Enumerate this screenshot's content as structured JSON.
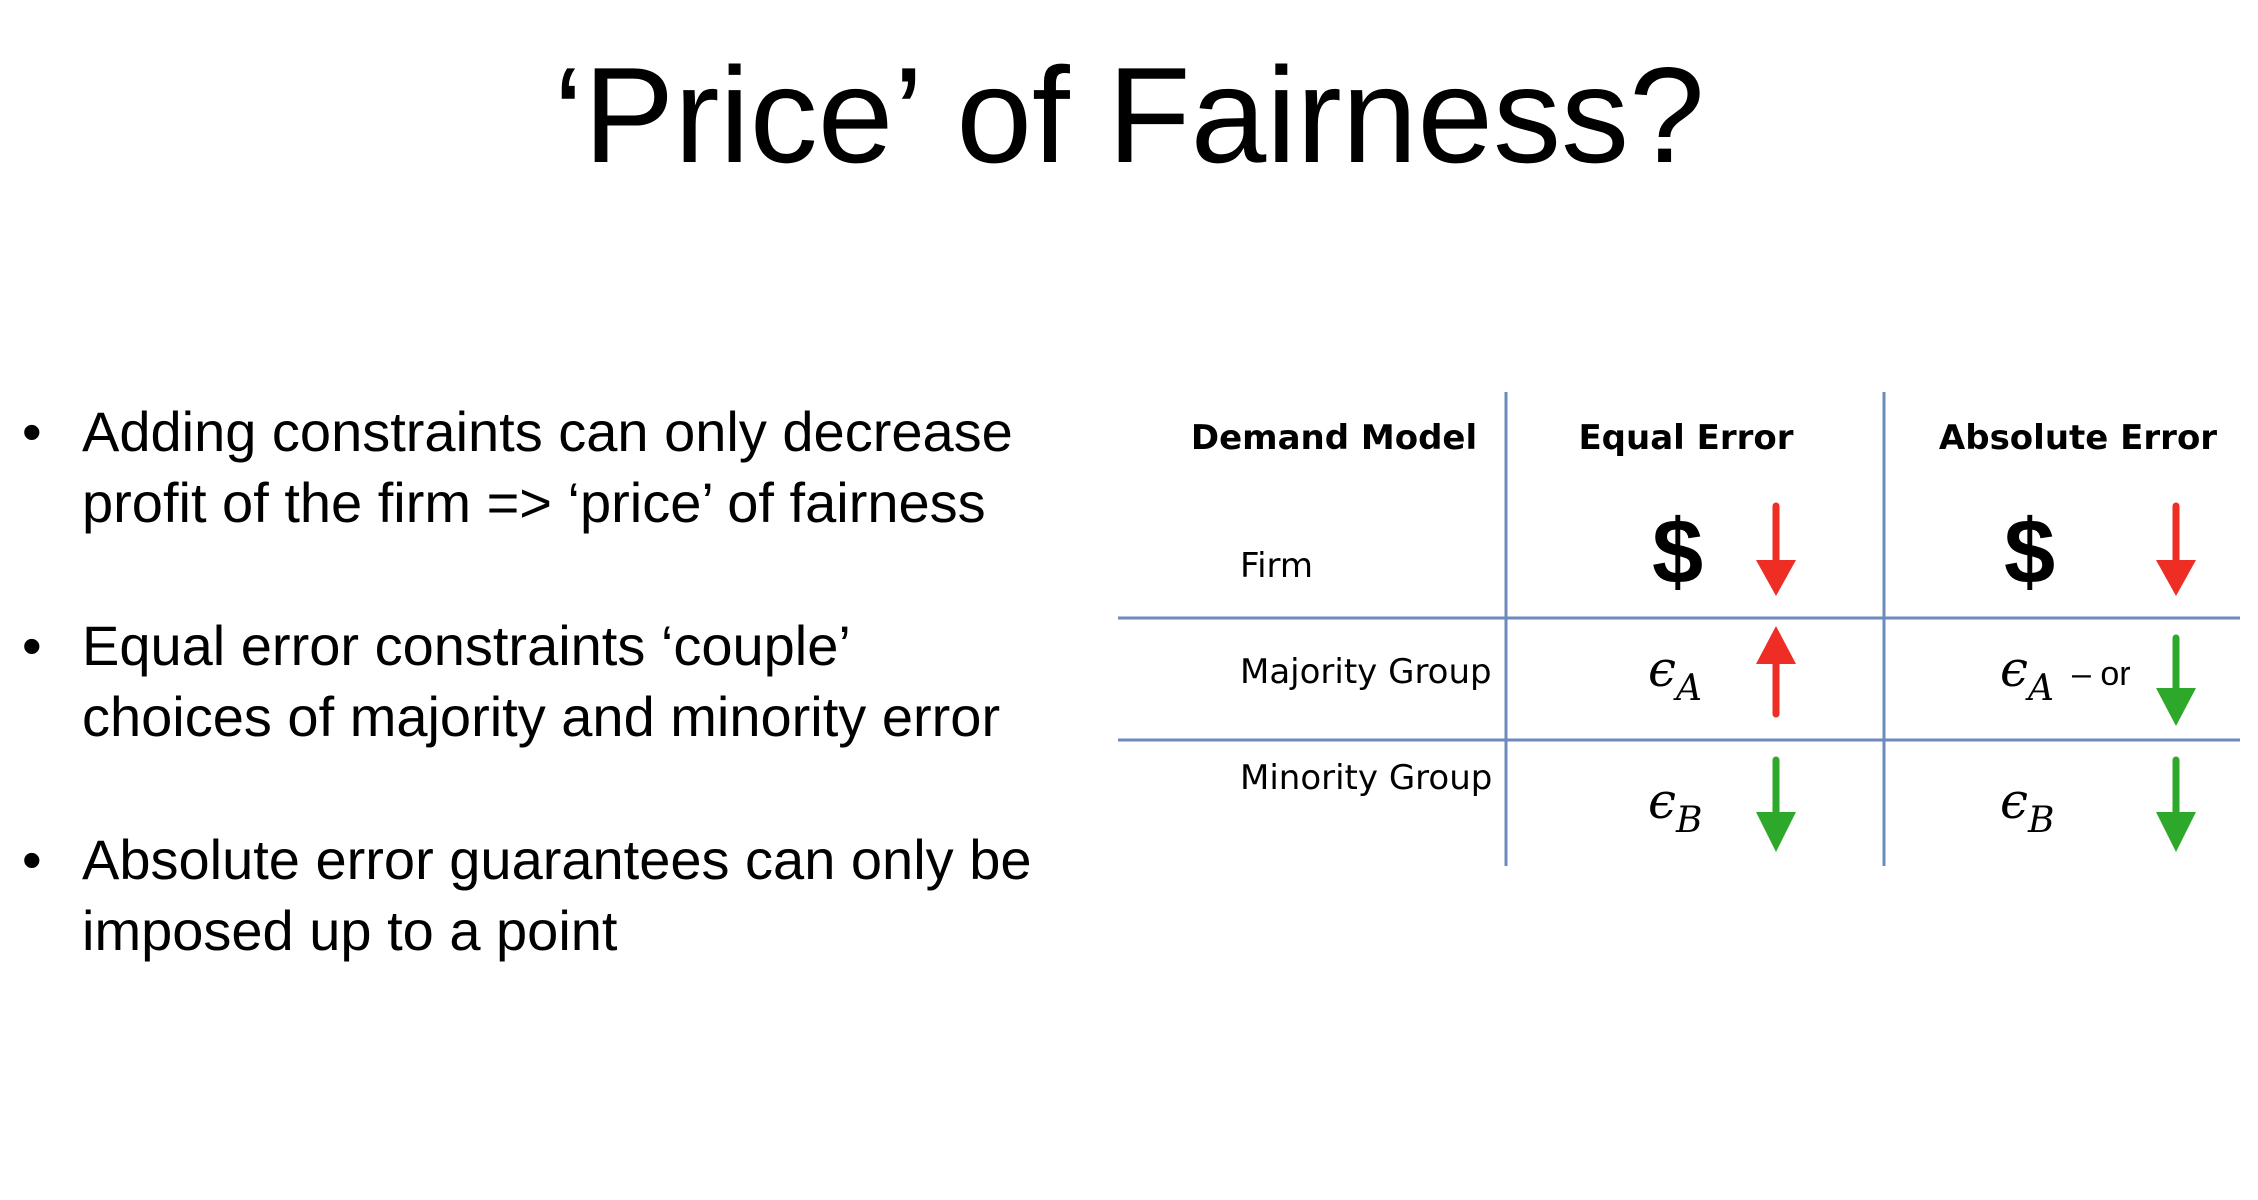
{
  "title": "‘Price’ of Fairness?",
  "bullets": [
    {
      "line1": "Adding constraints can only decrease",
      "line2": "profit of the firm => ‘price’ of fairness"
    },
    {
      "line1": "Equal error constraints ‘couple’",
      "line2": "choices of majority and minority error"
    },
    {
      "line1": "Absolute error guarantees can only be",
      "line2": "imposed up to a point"
    }
  ],
  "bullet_symbol": "•",
  "table": {
    "headers": {
      "model": "Demand Model",
      "equal": "Equal Error",
      "absolute": "Absolute Error"
    },
    "rows": {
      "firm": {
        "label": "Firm",
        "equal_symbol": "$",
        "equal_arrow": "down",
        "absolute_symbol": "$",
        "absolute_arrow": "down"
      },
      "majority": {
        "label": "Majority Group",
        "equal_eps": "ϵ",
        "equal_sub": "A",
        "equal_arrow": "up",
        "absolute_eps": "ϵ",
        "absolute_sub": "A",
        "absolute_note": "– or",
        "absolute_arrow": "down"
      },
      "minority": {
        "label": "Minority Group",
        "equal_eps": "ϵ",
        "equal_sub": "B",
        "equal_arrow": "down",
        "absolute_eps": "ϵ",
        "absolute_sub": "B",
        "absolute_arrow": "down"
      }
    },
    "colors": {
      "line": "#6b8bbd",
      "arrow_up": "#ee2d24",
      "arrow_down_firm": "#ee2d24",
      "arrow_down_group": "#2ea82a"
    }
  }
}
